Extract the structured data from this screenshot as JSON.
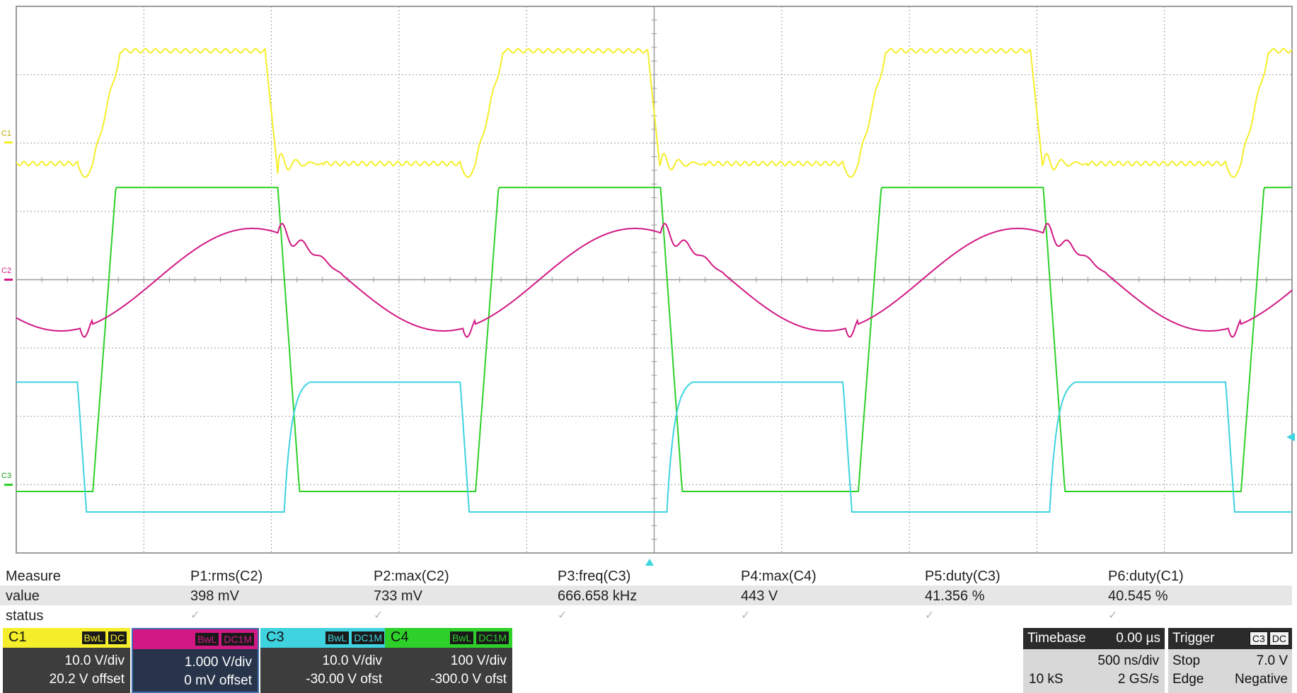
{
  "colors": {
    "c1": "#f5ee2a",
    "c2": "#d21884",
    "c3": "#3fd3e0",
    "c4": "#2ed12a",
    "grid": "#9c9c9c"
  },
  "screen": {
    "markers": {
      "c1": "C1",
      "c2": "C2",
      "c3": "C3"
    }
  },
  "measure": {
    "row_labels": {
      "measure": "Measure",
      "value": "value",
      "status": "status"
    },
    "params": [
      {
        "name": "P1:rms(C2)",
        "value": "398 mV"
      },
      {
        "name": "P2:max(C2)",
        "value": "733 mV"
      },
      {
        "name": "P3:freq(C3)",
        "value": "666.658 kHz"
      },
      {
        "name": "P4:max(C4)",
        "value": "443 V"
      },
      {
        "name": "P5:duty(C3)",
        "value": "41.356 %"
      },
      {
        "name": "P6:duty(C1)",
        "value": "40.545 %"
      }
    ],
    "status_glyph": "✓"
  },
  "channels": [
    {
      "name": "C1",
      "tags": [
        "BwL",
        "DC"
      ],
      "vdiv": "10.0 V/div",
      "offset": "20.2 V offset",
      "selected": false
    },
    {
      "name": "C2",
      "tags": [
        "BwL",
        "DC1M"
      ],
      "vdiv": "1.000 V/div",
      "offset": "0 mV offset",
      "selected": true
    },
    {
      "name": "C3",
      "tags": [
        "BwL",
        "DC1M"
      ],
      "vdiv": "10.0 V/div",
      "offset": "-30.00 V ofst",
      "selected": false
    },
    {
      "name": "C4",
      "tags": [
        "BwL",
        "DC1M"
      ],
      "vdiv": "100 V/div",
      "offset": "-300.0 V ofst",
      "selected": false
    }
  ],
  "timebase": {
    "label": "Timebase",
    "delay": "0.00 µs",
    "tdiv": "500 ns/div",
    "samples": "10 kS",
    "rate": "2 GS/s"
  },
  "trigger": {
    "label": "Trigger",
    "tags": [
      "C3",
      "DC"
    ],
    "mode": "Stop",
    "level": "7.0 V",
    "type": "Edge",
    "slope": "Negative"
  },
  "waveforms": {
    "divisions": {
      "h": 10,
      "v": 8
    },
    "period_div": 3.0,
    "phase_div": 0.6,
    "c4": {
      "high_div": 5.35,
      "low_div": 0.9
    },
    "c3": {
      "high_div": 2.5,
      "low_div": 0.6
    },
    "c1": {
      "high_div": 7.35,
      "low_div": 5.7
    },
    "c2": {
      "amplitude_div": 0.75,
      "center_div": 4.0
    }
  }
}
